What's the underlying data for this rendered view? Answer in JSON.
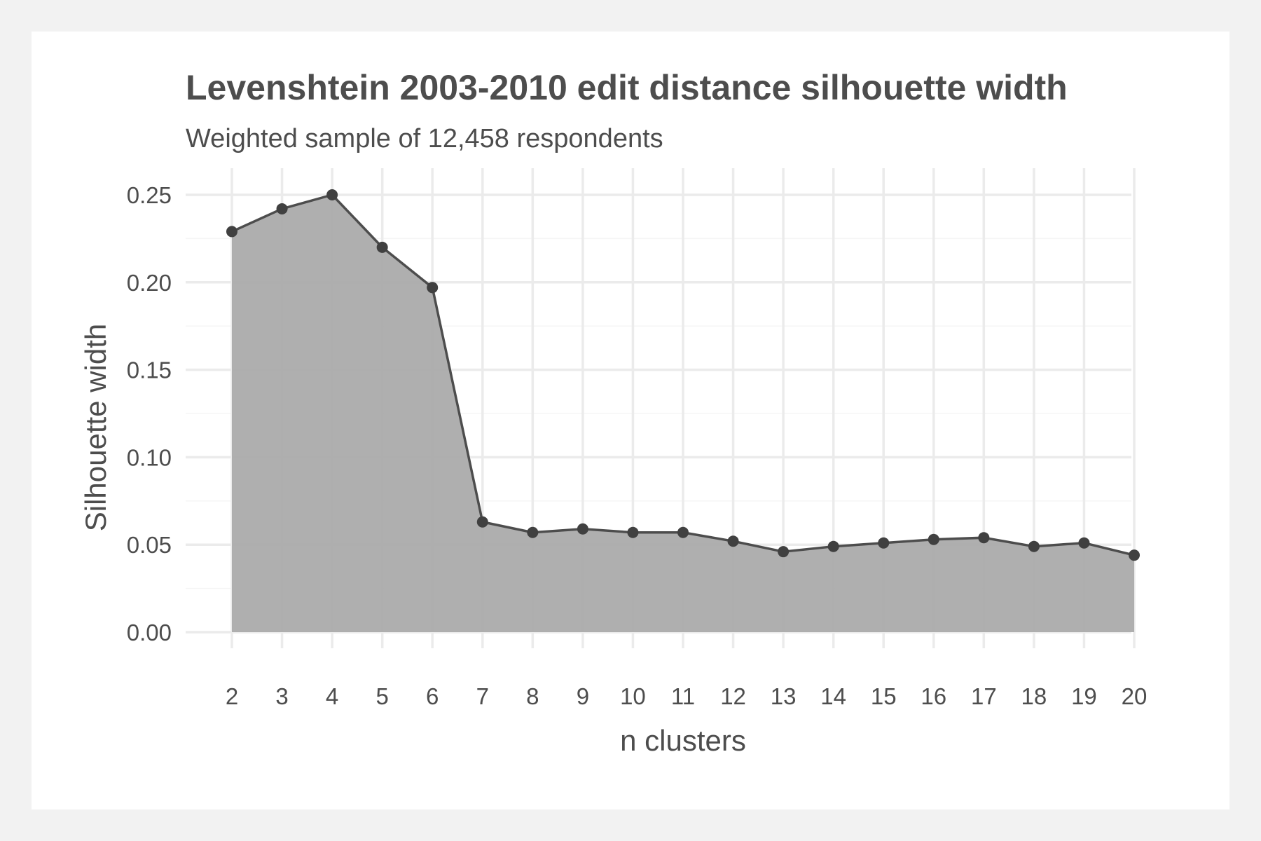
{
  "chart_data": {
    "type": "area",
    "title": "Levenshtein 2003-2010 edit distance silhouette width",
    "subtitle": "Weighted sample of 12,458 respondents",
    "xlabel": "n clusters",
    "ylabel": "Silhouette width",
    "x": [
      2,
      3,
      4,
      5,
      6,
      7,
      8,
      9,
      10,
      11,
      12,
      13,
      14,
      15,
      16,
      17,
      18,
      19,
      20
    ],
    "values": [
      0.229,
      0.242,
      0.25,
      0.22,
      0.197,
      0.063,
      0.057,
      0.059,
      0.057,
      0.057,
      0.052,
      0.046,
      0.049,
      0.051,
      0.053,
      0.054,
      0.049,
      0.051,
      0.044
    ],
    "x_ticks": [
      "2",
      "3",
      "4",
      "5",
      "6",
      "7",
      "8",
      "9",
      "10",
      "11",
      "12",
      "13",
      "14",
      "15",
      "16",
      "17",
      "18",
      "19",
      "20"
    ],
    "y_ticks": [
      "0.00",
      "0.05",
      "0.10",
      "0.15",
      "0.20",
      "0.25"
    ],
    "xlim": [
      2,
      20
    ],
    "ylim": [
      0,
      0.25
    ],
    "grid": true,
    "legend": "none",
    "colors": {
      "fill": "#ababab",
      "line": "#4d4d4d",
      "point": "#404040",
      "grid": "#ebebeb",
      "text": "#4d4d4d",
      "panel": "#ffffff",
      "background": "#f2f2f2"
    }
  }
}
